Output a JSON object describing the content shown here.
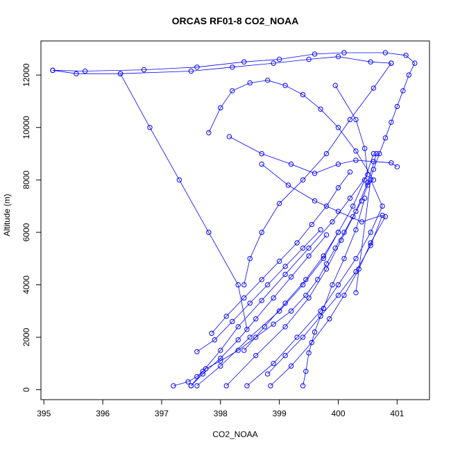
{
  "chart_data": {
    "type": "line",
    "title": "ORCAS RF01-8 CO2_NOAA",
    "xlabel": "CO2_NOAA",
    "ylabel": "Altitude (m)",
    "xlim": [
      394.95,
      401.55
    ],
    "ylim": [
      -380,
      13300
    ],
    "x_ticks": [
      395,
      396,
      397,
      398,
      399,
      400,
      401
    ],
    "y_ticks": [
      0,
      2000,
      4000,
      6000,
      8000,
      10000,
      12000
    ],
    "grid": false,
    "legend": "none",
    "marker": "open-circle",
    "color": "#0000ff",
    "series": [
      {
        "x": [
          397.2,
          397.45,
          397.6,
          397.75,
          398.0,
          398.3,
          398.6,
          398.9,
          399.2,
          399.45,
          399.65,
          399.8,
          399.95,
          400.1,
          400.25,
          400.4,
          400.5,
          400.6,
          400.7,
          400.8,
          400.9,
          401.0,
          401.1,
          401.2,
          401.3,
          401.15,
          400.8,
          400.1,
          399.6,
          399.0,
          398.4,
          397.6,
          396.7,
          395.7,
          395.15
        ],
        "y": [
          150,
          300,
          500,
          800,
          1100,
          1500,
          2000,
          2500,
          3000,
          3600,
          4200,
          4800,
          5400,
          6000,
          6600,
          7200,
          7800,
          8400,
          9000,
          9600,
          10200,
          10800,
          11400,
          12000,
          12450,
          12750,
          12850,
          12850,
          12800,
          12600,
          12500,
          12300,
          12200,
          12150,
          12180
        ]
      },
      {
        "x": [
          395.15,
          395.55,
          396.3,
          397.5,
          398.2,
          398.9,
          399.5,
          400.0,
          400.55,
          400.9
        ],
        "y": [
          12180,
          12050,
          12050,
          12150,
          12300,
          12450,
          12600,
          12700,
          12500,
          12450
        ]
      },
      {
        "x": [
          396.3,
          396.8,
          397.3,
          397.8,
          398.3,
          398.45
        ],
        "y": [
          12050,
          10000,
          8000,
          6000,
          4000,
          2300
        ]
      },
      {
        "x": [
          400.9,
          400.6,
          400.2,
          399.8,
          399.4,
          399.0,
          398.7,
          398.5,
          398.4
        ],
        "y": [
          12450,
          11500,
          10300,
          9000,
          8000,
          7100,
          6000,
          5000,
          4000
        ]
      },
      {
        "x": [
          397.8,
          398.0,
          398.2,
          398.5,
          398.8,
          399.1,
          399.4,
          399.7,
          400.0,
          400.3,
          400.6
        ],
        "y": [
          9800,
          10750,
          11400,
          11700,
          11800,
          11600,
          11250,
          10700,
          10000,
          9100,
          8000
        ]
      },
      {
        "x": [
          398.15,
          398.7,
          399.2,
          399.6,
          400.0,
          400.3,
          400.6,
          400.9,
          401.0
        ],
        "y": [
          9650,
          9000,
          8600,
          8250,
          8600,
          8750,
          8700,
          8650,
          8500
        ]
      },
      {
        "x": [
          398.7,
          399.15,
          399.6,
          400.0,
          400.4,
          400.75,
          400.55,
          400.3,
          400.0,
          399.7,
          399.4,
          399.1,
          398.8
        ],
        "y": [
          8600,
          7800,
          7200,
          6800,
          6400,
          6650,
          5500,
          4500,
          3600,
          2800,
          2000,
          1300,
          600
        ]
      },
      {
        "x": [
          399.95,
          400.3,
          400.45,
          400.5,
          400.2,
          399.9,
          399.5,
          399.1,
          398.7,
          398.3,
          398.0,
          397.7,
          397.5
        ],
        "y": [
          11600,
          10300,
          9200,
          8200,
          7300,
          6400,
          5400,
          4400,
          3400,
          2400,
          1500,
          700,
          150
        ]
      },
      {
        "x": [
          397.6,
          398.0,
          398.5,
          399.0,
          399.4,
          399.75,
          400.0,
          400.25,
          400.45,
          400.6
        ],
        "y": [
          150,
          900,
          2000,
          3000,
          4000,
          5000,
          6000,
          7000,
          8000,
          9000
        ]
      },
      {
        "x": [
          398.1,
          398.6,
          399.1,
          399.5,
          399.8,
          400.05,
          400.3,
          400.5,
          400.65
        ],
        "y": [
          150,
          1300,
          2400,
          3500,
          4600,
          5700,
          6800,
          7900,
          9000
        ]
      },
      {
        "x": [
          398.45,
          398.9,
          399.3,
          399.7,
          400.0,
          400.3,
          400.55,
          400.75,
          400.55,
          400.3
        ],
        "y": [
          150,
          1000,
          2000,
          3000,
          4000,
          5000,
          6000,
          7000,
          8000,
          3700
        ]
      },
      {
        "x": [
          399.4,
          399.45,
          399.5,
          399.6,
          399.75,
          399.9,
          400.1,
          400.3,
          400.45
        ],
        "y": [
          150,
          700,
          1400,
          2200,
          3100,
          4000,
          5000,
          6100,
          7300
        ]
      },
      {
        "x": [
          397.85,
          398.1,
          398.4,
          398.7,
          399.0,
          399.3,
          399.55,
          399.8,
          400.0,
          400.2
        ],
        "y": [
          2150,
          2800,
          3500,
          4200,
          4900,
          5600,
          6300,
          7000,
          7700,
          8300
        ]
      },
      {
        "x": [
          397.6,
          397.9,
          398.2,
          398.5,
          398.8,
          399.1,
          399.4,
          399.7
        ],
        "y": [
          1450,
          1900,
          2600,
          3300,
          4000,
          4700,
          5400,
          6100
        ]
      },
      {
        "x": [
          398.85,
          399.2,
          399.55,
          399.85,
          400.1,
          400.35,
          400.55,
          400.8
        ],
        "y": [
          150,
          900,
          1800,
          2700,
          3600,
          4600,
          5600,
          6600
        ]
      },
      {
        "x": [
          397.5,
          397.7,
          398.0,
          398.3,
          398.6,
          398.9,
          399.2,
          399.5,
          399.8
        ],
        "y": [
          150,
          600,
          1200,
          1900,
          2700,
          3500,
          4300,
          5100,
          5900
        ]
      },
      {
        "x": [
          398.4,
          398.75,
          399.1,
          399.45,
          399.75,
          400.0
        ],
        "y": [
          1500,
          2400,
          3300,
          4200,
          5100,
          6000
        ]
      }
    ]
  }
}
